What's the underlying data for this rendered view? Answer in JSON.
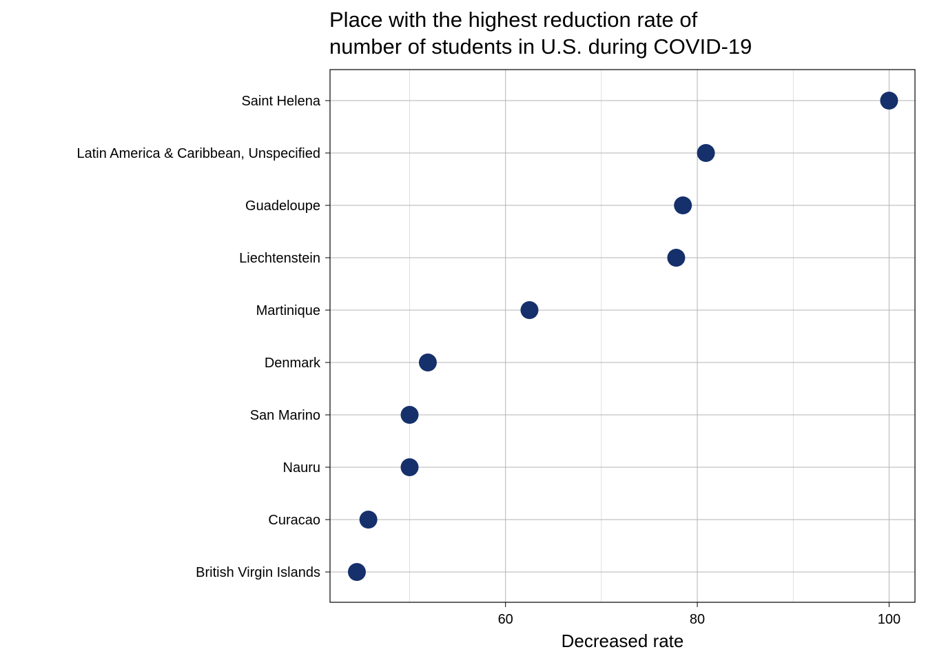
{
  "chart_data": {
    "type": "scatter",
    "title_lines": [
      "Place with the highest reduction rate of",
      "number of students in U.S. during COVID-19"
    ],
    "xlabel": "Decreased rate",
    "ylabel": "",
    "categories": [
      "Saint Helena",
      "Latin America & Caribbean, Unspecified",
      "Guadeloupe",
      "Liechtenstein",
      "Martinique",
      "Denmark",
      "San Marino",
      "Nauru",
      "Curacao",
      "British Virgin Islands"
    ],
    "values": [
      100,
      80.9,
      78.5,
      77.8,
      62.5,
      51.9,
      50.0,
      50.0,
      45.7,
      44.5
    ],
    "x_ticks": [
      60,
      80,
      100
    ],
    "x_minor_ticks": [
      50,
      70,
      90
    ],
    "xlim": [
      41.7,
      102.7
    ],
    "grid": true,
    "legend": "none",
    "point_color": "#15306b",
    "grid_color": "#b3b3b3",
    "frame_color": "#000000"
  }
}
